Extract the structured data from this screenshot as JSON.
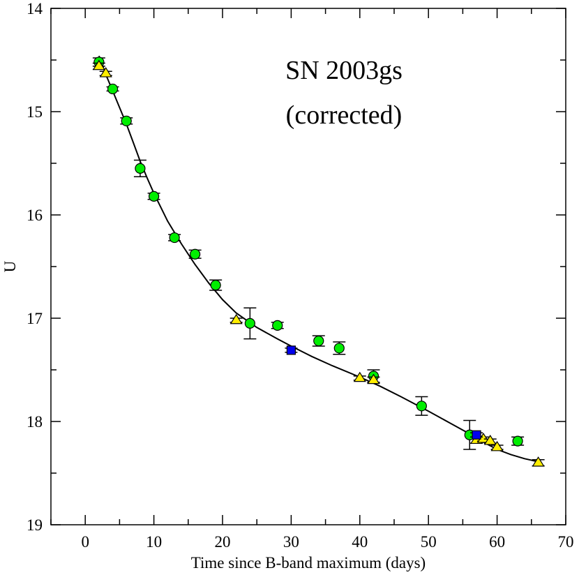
{
  "chart_data": {
    "type": "scatter",
    "title_lines": [
      "SN 2003gs",
      "(corrected)"
    ],
    "xlabel": "Time since B-band maximum (days)",
    "ylabel": "U",
    "xlim": [
      -5,
      70
    ],
    "ylim": [
      14,
      19
    ],
    "y_inverted": true,
    "x_ticks": [
      0,
      10,
      20,
      30,
      40,
      50,
      60,
      70
    ],
    "y_ticks": [
      14,
      15,
      16,
      17,
      18,
      19
    ],
    "series": [
      {
        "name": "circles",
        "marker": "circle",
        "color": "#00ee00",
        "points": [
          {
            "x": 2.0,
            "y": 14.52,
            "err": 0.04
          },
          {
            "x": 4.0,
            "y": 14.78,
            "err": 0.02
          },
          {
            "x": 6.0,
            "y": 15.09,
            "err": 0.03
          },
          {
            "x": 8.0,
            "y": 15.55,
            "err": 0.08
          },
          {
            "x": 10.0,
            "y": 15.82,
            "err": 0.03
          },
          {
            "x": 13.0,
            "y": 16.22,
            "err": 0.03
          },
          {
            "x": 16.0,
            "y": 16.38,
            "err": 0.04
          },
          {
            "x": 19.0,
            "y": 16.68,
            "err": 0.05
          },
          {
            "x": 24.0,
            "y": 17.05,
            "err": 0.15
          },
          {
            "x": 28.0,
            "y": 17.07,
            "err": 0.03
          },
          {
            "x": 34.0,
            "y": 17.22,
            "err": 0.05
          },
          {
            "x": 37.0,
            "y": 17.29,
            "err": 0.06
          },
          {
            "x": 42.0,
            "y": 17.56,
            "err": 0.06
          },
          {
            "x": 49.0,
            "y": 17.85,
            "err": 0.09
          },
          {
            "x": 56.0,
            "y": 18.13,
            "err": 0.14
          },
          {
            "x": 63.0,
            "y": 18.19,
            "err": 0.04
          }
        ]
      },
      {
        "name": "triangles",
        "marker": "triangle",
        "color": "#ffee00",
        "points": [
          {
            "x": 2.0,
            "y": 14.56,
            "err": 0.03
          },
          {
            "x": 3.0,
            "y": 14.63,
            "err": 0.02
          },
          {
            "x": 22.0,
            "y": 17.02,
            "err": 0.02
          },
          {
            "x": 40.0,
            "y": 17.58,
            "err": 0.02
          },
          {
            "x": 42.0,
            "y": 17.6,
            "err": 0.03
          },
          {
            "x": 57.0,
            "y": 18.18,
            "err": 0.03
          },
          {
            "x": 58.0,
            "y": 18.17,
            "err": 0.02
          },
          {
            "x": 59.0,
            "y": 18.19,
            "err": 0.02
          },
          {
            "x": 60.0,
            "y": 18.25,
            "err": 0.02
          },
          {
            "x": 66.0,
            "y": 18.4,
            "err": 0.03
          }
        ]
      },
      {
        "name": "squares",
        "marker": "square",
        "color": "#0000ee",
        "points": [
          {
            "x": 30.0,
            "y": 17.31,
            "err": 0.02
          },
          {
            "x": 57.0,
            "y": 18.13,
            "err": 0.02
          }
        ]
      }
    ],
    "fit_curve": {
      "name": "fit",
      "color": "#000000",
      "points": [
        [
          2.0,
          14.46
        ],
        [
          3.0,
          14.64
        ],
        [
          4.0,
          14.8
        ],
        [
          5.0,
          14.96
        ],
        [
          6.0,
          15.12
        ],
        [
          7.0,
          15.3
        ],
        [
          8.0,
          15.48
        ],
        [
          9.0,
          15.64
        ],
        [
          10.0,
          15.79
        ],
        [
          12.0,
          16.06
        ],
        [
          14.0,
          16.28
        ],
        [
          16.0,
          16.48
        ],
        [
          18.0,
          16.66
        ],
        [
          20.0,
          16.82
        ],
        [
          22.0,
          16.95
        ],
        [
          25.0,
          17.09
        ],
        [
          28.0,
          17.2
        ],
        [
          30.0,
          17.27
        ],
        [
          33.0,
          17.37
        ],
        [
          36.0,
          17.46
        ],
        [
          40.0,
          17.57
        ],
        [
          43.0,
          17.66
        ],
        [
          46.0,
          17.76
        ],
        [
          50.0,
          17.9
        ],
        [
          53.0,
          18.01
        ],
        [
          56.0,
          18.12
        ],
        [
          58.0,
          18.2
        ],
        [
          60.0,
          18.27
        ],
        [
          62.0,
          18.32
        ],
        [
          64.0,
          18.36
        ],
        [
          66.0,
          18.39
        ]
      ]
    }
  }
}
